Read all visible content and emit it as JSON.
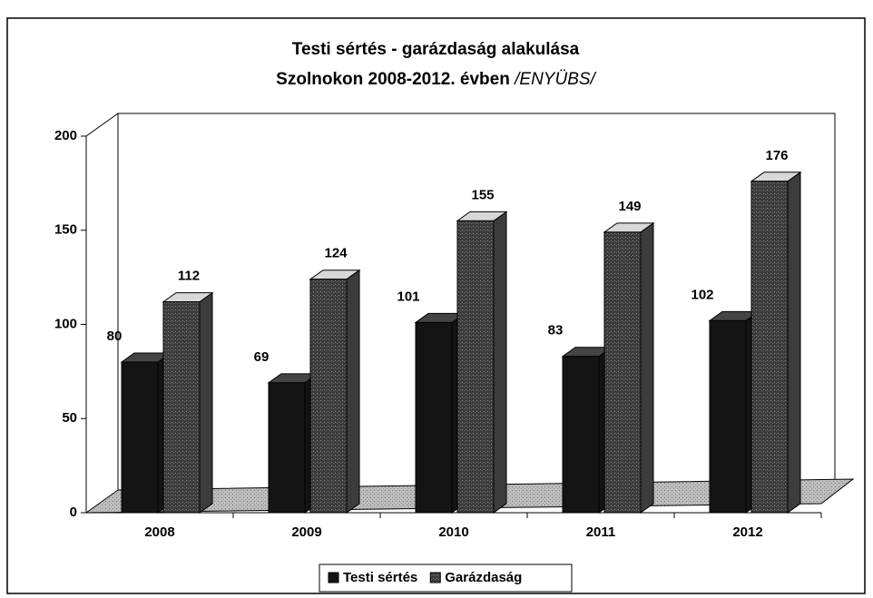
{
  "chart_data": {
    "type": "bar3d",
    "title": [
      "Testi sértés - garázdaság alakulása",
      "Szolnokon 2008-2012. évben",
      "/ENYÜBS/"
    ],
    "categories": [
      "2008",
      "2009",
      "2010",
      "2011",
      "2012"
    ],
    "series": [
      {
        "name": "Testi sértés",
        "color": "#141414",
        "values": [
          80,
          69,
          101,
          83,
          102
        ]
      },
      {
        "name": "Garázdaság",
        "color": "#3c3c3c",
        "values": [
          112,
          124,
          155,
          149,
          176
        ]
      }
    ],
    "ylim": [
      0,
      200
    ],
    "yticks": [
      0,
      50,
      100,
      150,
      200
    ],
    "grid": false,
    "legend": "bottom"
  }
}
